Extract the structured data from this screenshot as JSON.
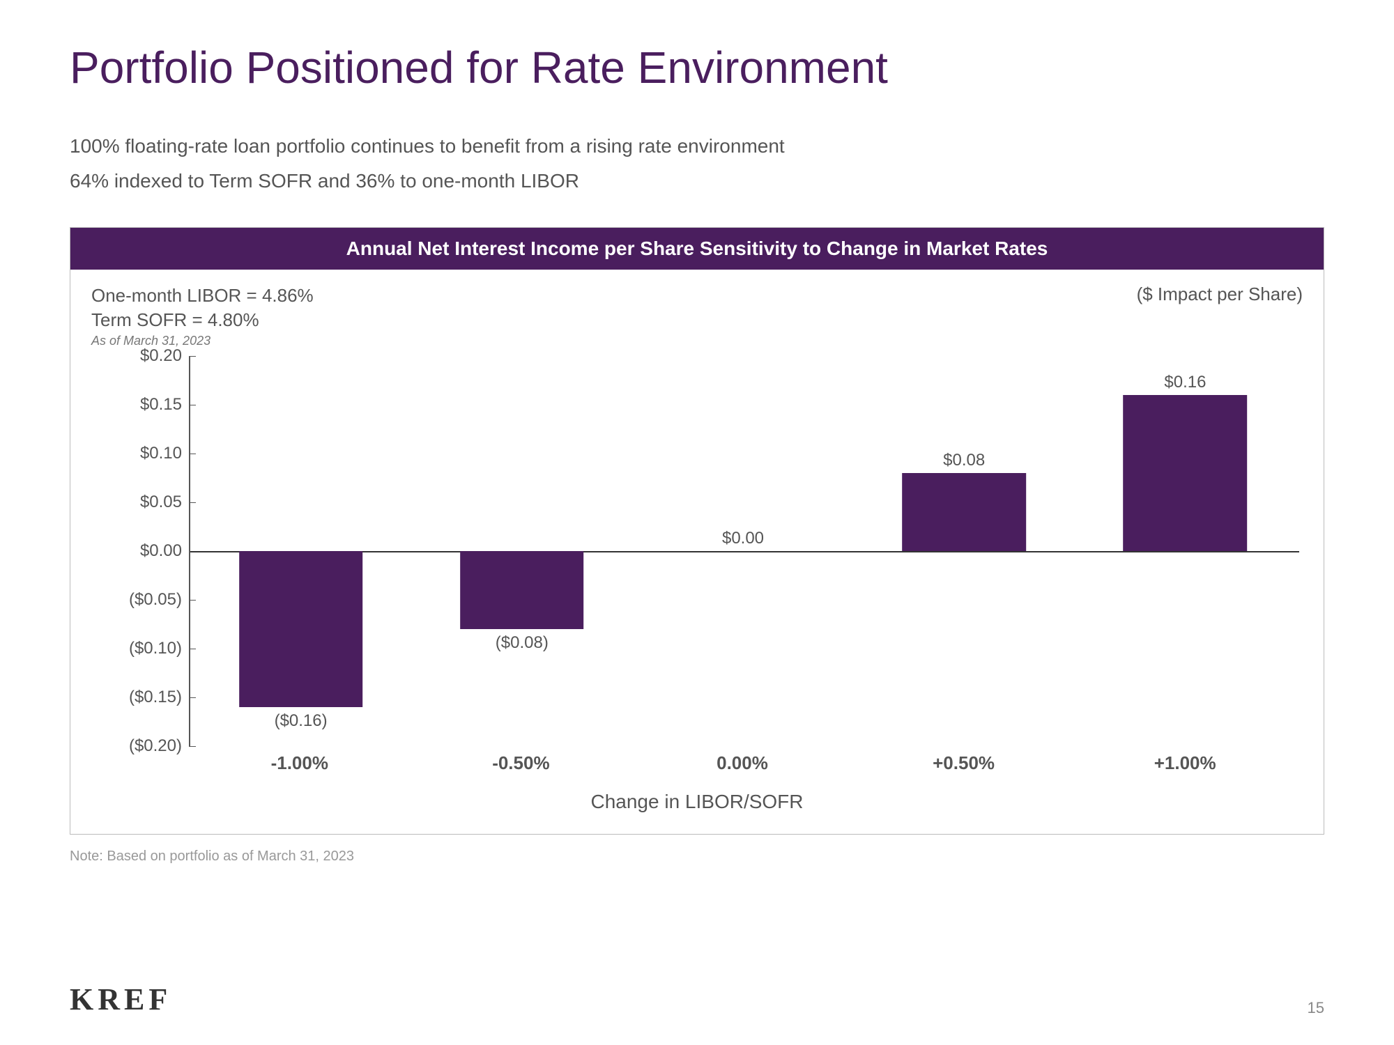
{
  "title": "Portfolio Positioned for Rate Environment",
  "subtitles": [
    "100% floating-rate loan portfolio continues to benefit from a rising rate environment",
    "64% indexed to Term SOFR and 36% to one-month LIBOR"
  ],
  "chart": {
    "banner": "Annual Net Interest Income per Share Sensitivity to Change in Market Rates",
    "meta_left_line1": "One-month LIBOR = 4.86%",
    "meta_left_line2": "Term SOFR = 4.80%",
    "meta_asof": "As of March 31, 2023",
    "meta_right": "($ Impact per Share)",
    "type": "bar",
    "categories": [
      "-1.00%",
      "-0.50%",
      "0.00%",
      "+0.50%",
      "+1.00%"
    ],
    "values": [
      -0.16,
      -0.08,
      0.0,
      0.08,
      0.16
    ],
    "value_labels": [
      "($0.16)",
      "($0.08)",
      "$0.00",
      "$0.08",
      "$0.16"
    ],
    "bar_color": "#4a1e5e",
    "ylim": [
      -0.2,
      0.2
    ],
    "ytick_step": 0.05,
    "yticks": [
      0.2,
      0.15,
      0.1,
      0.05,
      0.0,
      -0.05,
      -0.1,
      -0.15,
      -0.2
    ],
    "ytick_labels": [
      "$0.20",
      "$0.15",
      "$0.10",
      "$0.05",
      "$0.00",
      "($0.05)",
      "($0.10)",
      "($0.15)",
      "($0.20)"
    ],
    "xaxis_title": "Change in LIBOR/SOFR",
    "bar_width_pct": 56,
    "background_color": "#ffffff",
    "axis_color": "#555555",
    "title_fontsize": 28,
    "label_fontsize": 24
  },
  "note": "Note: Based on portfolio as of March 31, 2023",
  "logo": "KREF",
  "page_number": "15",
  "colors": {
    "brand": "#4a1e5e",
    "text_primary": "#555555",
    "text_muted": "#999999"
  }
}
